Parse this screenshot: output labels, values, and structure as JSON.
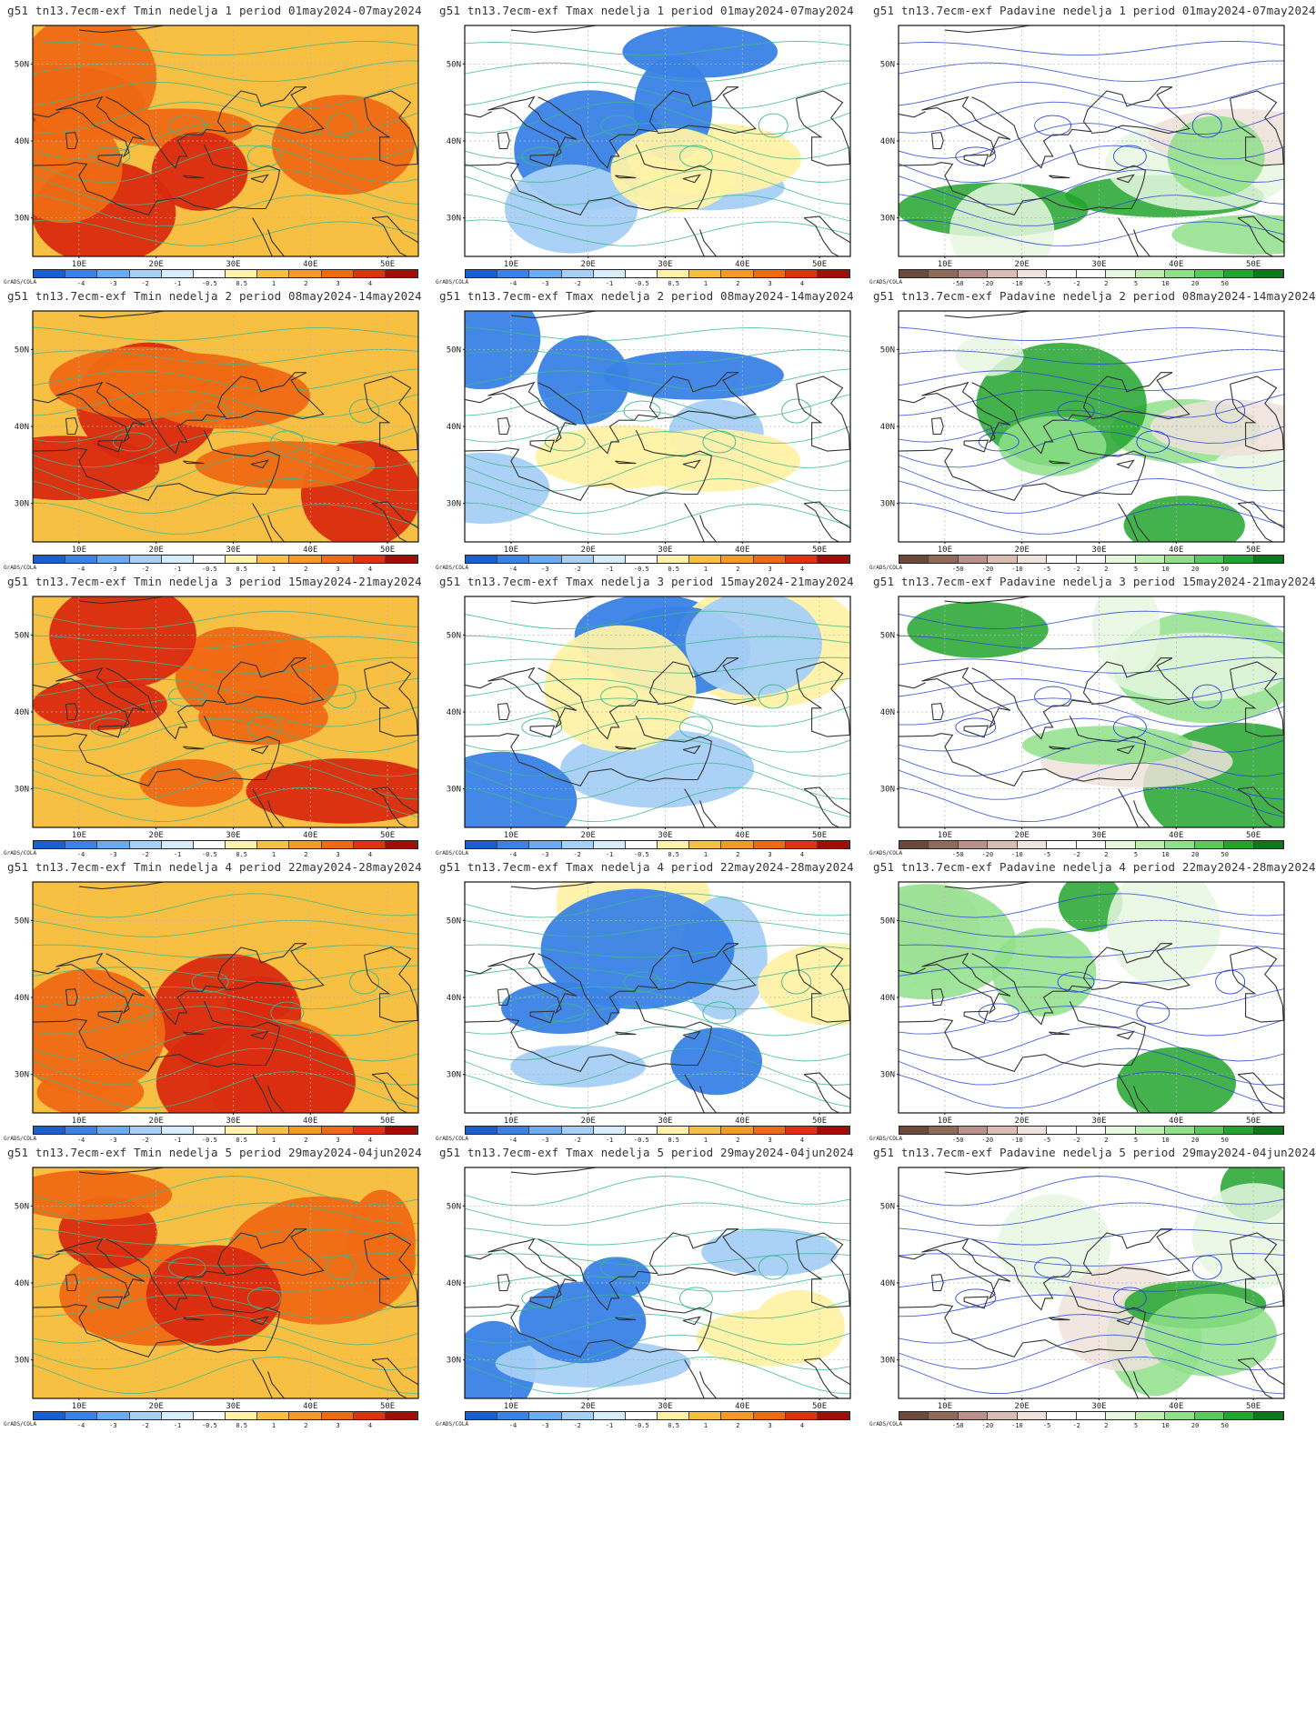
{
  "grid": {
    "rows": [
      {
        "panels": [
          {
            "title": "g51 tn13.7ecm-exf Tmin nedelja 1 period 01may2024-07may2024",
            "var": "tmin"
          },
          {
            "title": "g51 tn13.7ecm-exf Tmax nedelja 1 period 01may2024-07may2024",
            "var": "tmax"
          },
          {
            "title": "g51 tn13.7ecm-exf Padavine nedelja 1 period 01may2024-07may2024",
            "var": "precip"
          }
        ]
      },
      {
        "panels": [
          {
            "title": "g51 tn13.7ecm-exf Tmin nedelja 2 period 08may2024-14may2024",
            "var": "tmin"
          },
          {
            "title": "g51 tn13.7ecm-exf Tmax nedelja 2 period 08may2024-14may2024",
            "var": "tmax"
          },
          {
            "title": "g51 tn13.7ecm-exf Padavine nedelja 2 period 08may2024-14may2024",
            "var": "precip"
          }
        ]
      },
      {
        "panels": [
          {
            "title": "g51 tn13.7ecm-exf Tmin nedelja 3 period 15may2024-21may2024",
            "var": "tmin"
          },
          {
            "title": "g51 tn13.7ecm-exf Tmax nedelja 3 period 15may2024-21may2024",
            "var": "tmax"
          },
          {
            "title": "g51 tn13.7ecm-exf Padavine nedelja 3 period 15may2024-21may2024",
            "var": "precip"
          }
        ]
      },
      {
        "panels": [
          {
            "title": "g51 tn13.7ecm-exf Tmin nedelja 4 period 22may2024-28may2024",
            "var": "tmin"
          },
          {
            "title": "g51 tn13.7ecm-exf Tmax nedelja 4 period 22may2024-28may2024",
            "var": "tmax"
          },
          {
            "title": "g51 tn13.7ecm-exf Padavine nedelja 4 period 22may2024-28may2024",
            "var": "precip"
          }
        ]
      },
      {
        "panels": [
          {
            "title": "g51 tn13.7ecm-exf Tmin nedelja 5 period 29may2024-04jun2024",
            "var": "tmin"
          },
          {
            "title": "g51 tn13.7ecm-exf Tmax nedelja 5 period 29may2024-04jun2024",
            "var": "tmax"
          },
          {
            "title": "g51 tn13.7ecm-exf Padavine nedelja 5 period 29may2024-04jun2024",
            "var": "precip"
          }
        ]
      }
    ]
  },
  "axes": {
    "lat_labels": [
      "50N",
      "40N",
      "30N"
    ],
    "lon_labels": [
      "10E",
      "20E",
      "30E",
      "40E",
      "50E"
    ]
  },
  "colorbars": {
    "temp": {
      "colors": [
        "#1a5fd0",
        "#3a82e6",
        "#6aaaf0",
        "#a6d0f6",
        "#d6ecfb",
        "#ffffff",
        "#fff2a8",
        "#f7c043",
        "#f29a26",
        "#ef6a14",
        "#e0320f",
        "#a30d06"
      ],
      "labels": [
        "-4",
        "-3",
        "-2",
        "-1",
        "-0.5",
        "0.5",
        "1",
        "2",
        "3",
        "4"
      ]
    },
    "precip": {
      "colors": [
        "#6b4a3a",
        "#8f6a58",
        "#b9918a",
        "#d9bcb4",
        "#f0e2dc",
        "#ffffff",
        "#ffffff",
        "#e6f7e0",
        "#bfeeb2",
        "#8fe089",
        "#58c95a",
        "#22a52e",
        "#0a7a1a"
      ],
      "labels": [
        "-50",
        "-20",
        "-10",
        "-5",
        "-2",
        "2",
        "5",
        "10",
        "20",
        "50"
      ]
    },
    "source_label": "GrADS/COLA"
  },
  "palette": {
    "tmin_bg": "#f7c043",
    "tmin_hot": "#ef6a14",
    "tmin_hotter": "#d92a10",
    "tmax_bg": "#ffffff",
    "tmax_cool": "#a6d0f6",
    "tmax_cold": "#3a82e6",
    "precip_green": "#8fe089",
    "precip_dark": "#22a52e",
    "contour_green": "#3bb88c",
    "contour_blue": "#2a45d8",
    "coast": "#333333",
    "border": "#9a9a9a"
  }
}
